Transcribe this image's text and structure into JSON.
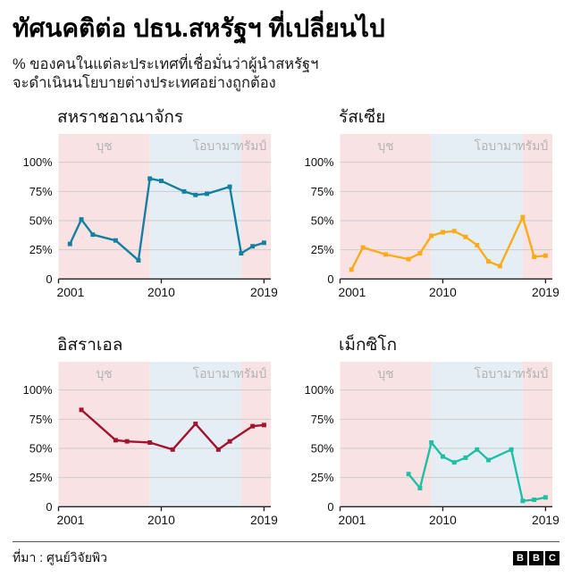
{
  "page": {
    "title": "ทัศนคติต่อ ปธน.สหรัฐฯ ที่เปลี่ยนไป",
    "subtitle_line1": "% ของคนในแต่ละประเทศที่เชื่อมั่นว่าผู้นำสหรัฐฯ",
    "subtitle_line2": "จะดำเนินนโยบายต่างประเทศอย่างถูกต้อง",
    "source": "ที่มา : ศูนย์วิจัยพิว",
    "logo_letters": [
      "B",
      "B",
      "C"
    ]
  },
  "eras": [
    {
      "label": "บุช",
      "start": 2001,
      "end": 2009,
      "color": "#f9e2e3"
    },
    {
      "label": "โอบามา",
      "start": 2009,
      "end": 2017,
      "color": "#e5eef5"
    },
    {
      "label": "ทรัมป์",
      "start": 2017,
      "end": 2019.6,
      "color": "#f9e2e3"
    }
  ],
  "axis": {
    "x_ticks": [
      2001,
      2010,
      2019
    ],
    "y_ticks": [
      0,
      25,
      50,
      75,
      100
    ],
    "y_tick_labels": [
      "0",
      "25%",
      "50%",
      "75%",
      "100%"
    ],
    "x_range": [
      2001,
      2019.6
    ],
    "y_range": [
      0,
      100
    ],
    "grid": true
  },
  "chart_data": [
    {
      "type": "line",
      "title": "สหราชอาณาจักร",
      "color": "#1380A1",
      "x": [
        2002,
        2003,
        2004,
        2006,
        2008,
        2009,
        2010,
        2012,
        2013,
        2014,
        2016,
        2017,
        2018,
        2019
      ],
      "values": [
        30,
        51,
        38,
        33,
        16,
        86,
        84,
        75,
        72,
        73,
        79,
        22,
        28,
        31
      ]
    },
    {
      "type": "line",
      "title": "รัสเซีย",
      "color": "#FAAB18",
      "x": [
        2002,
        2003,
        2005,
        2007,
        2008,
        2009,
        2010,
        2011,
        2012,
        2013,
        2014,
        2015,
        2017,
        2018,
        2019
      ],
      "values": [
        8,
        27,
        21,
        17,
        22,
        37,
        40,
        41,
        36,
        29,
        15,
        11,
        53,
        19,
        20
      ]
    },
    {
      "type": "line",
      "title": "อิสราเอล",
      "color": "#a1132e",
      "x": [
        2003,
        2006,
        2007,
        2009,
        2011,
        2013,
        2015,
        2016,
        2018,
        2019
      ],
      "values": [
        83,
        57,
        56,
        55,
        49,
        71,
        49,
        56,
        69,
        70
      ]
    },
    {
      "type": "line",
      "title": "เม็กซิโก",
      "color": "#1EBFA5",
      "x": [
        2007,
        2008,
        2009,
        2010,
        2011,
        2012,
        2013,
        2014,
        2016,
        2017,
        2018,
        2019
      ],
      "values": [
        28,
        16,
        55,
        43,
        38,
        42,
        49,
        40,
        49,
        5,
        6,
        8
      ]
    }
  ]
}
